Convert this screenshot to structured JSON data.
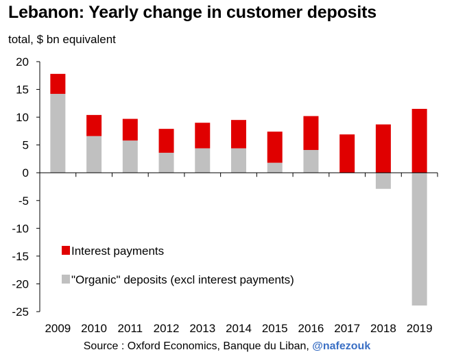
{
  "chart_data": {
    "type": "bar",
    "stacked": true,
    "title": "Lebanon: Yearly change in customer deposits",
    "subtitle": "total, $ bn equivalent",
    "categories": [
      "2009",
      "2010",
      "2011",
      "2012",
      "2013",
      "2014",
      "2015",
      "2016",
      "2017",
      "2018",
      "2019"
    ],
    "series": [
      {
        "name": "\"Organic\" deposits (excl interest payments)",
        "color": "#c0c0c0",
        "values": [
          14.2,
          6.6,
          5.8,
          3.6,
          4.4,
          4.4,
          1.8,
          4.1,
          0.0,
          -2.9,
          -23.9
        ]
      },
      {
        "name": "Interest payments",
        "color": "#e00000",
        "values": [
          3.6,
          3.8,
          3.9,
          4.3,
          4.6,
          5.1,
          5.6,
          6.1,
          6.9,
          8.7,
          11.5
        ]
      }
    ],
    "ylim": [
      -25,
      20
    ],
    "yticks": [
      20,
      15,
      10,
      5,
      0,
      -5,
      -10,
      -15,
      -20,
      -25
    ],
    "legend_position": "bottom-left"
  },
  "source": {
    "text": "Source : Oxford Economics, Banque du Liban, ",
    "handle": "@nafezouk"
  }
}
